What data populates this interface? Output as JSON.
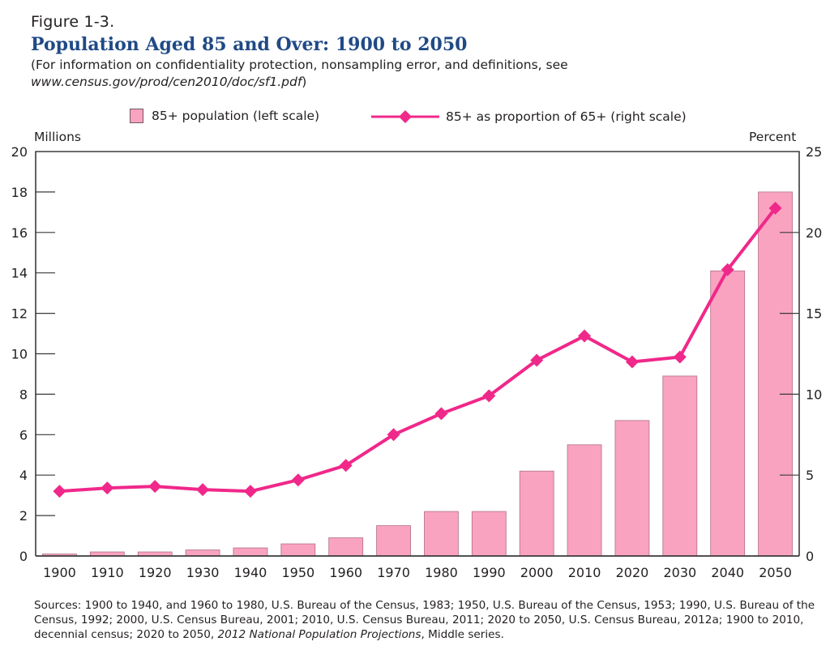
{
  "header": {
    "figure_label": "Figure 1-3.",
    "title": "Population Aged 85 and Over: 1900 to 2050",
    "subtitle_line1": "(For information on confidentiality protection, nonsampling error, and definitions, see",
    "subtitle_url": "www.census.gov/prod/cen2010/doc/sf1.pdf",
    "subtitle_close": ")"
  },
  "colors": {
    "title": "#1f4a86",
    "bar_fill": "#f9a3c0",
    "bar_stroke": "#b07088",
    "line": "#f0288a",
    "axis": "#3a3a3a"
  },
  "legend": {
    "bars_label": "85+ population (left scale)",
    "line_label": "85+ as proportion of 65+ (right scale)"
  },
  "sources": {
    "text_before_italic": "Sources: 1900 to 1940, and 1960 to 1980,  U.S. Bureau of the Census, 1983; 1950, U.S. Bureau of the Census, 1953; 1990, U.S. Bureau of the Census, 1992; 2000, U.S. Census Bureau, 2001; 2010, U.S. Census Bureau, 2011; 2020 to 2050, U.S. Census Bureau, 2012a; 1900 to 2010, decennial census; 2020 to 2050, ",
    "italic": "2012 National Population Projections",
    "text_after_italic": ", Middle series."
  },
  "chart_data": {
    "type": "bar+line",
    "title": "Population Aged 85 and Over: 1900 to 2050",
    "categories": [
      "1900",
      "1910",
      "1920",
      "1930",
      "1940",
      "1950",
      "1960",
      "1970",
      "1980",
      "1990",
      "2000",
      "2010",
      "2020",
      "2030",
      "2040",
      "2050"
    ],
    "series": [
      {
        "name": "85+ population (left scale)",
        "type": "bar",
        "axis": "left",
        "values": [
          0.1,
          0.2,
          0.2,
          0.3,
          0.4,
          0.6,
          0.9,
          1.5,
          2.2,
          2.2,
          4.2,
          5.5,
          6.7,
          8.9,
          14.1,
          18.0
        ]
      },
      {
        "name": "85+ as proportion of 65+ (right scale)",
        "type": "line",
        "marker": "diamond",
        "axis": "right",
        "values": [
          4.0,
          4.2,
          4.3,
          4.1,
          4.0,
          4.7,
          5.6,
          7.5,
          8.8,
          9.9,
          12.1,
          13.6,
          12.0,
          12.3,
          17.7,
          21.5
        ]
      }
    ],
    "left_axis": {
      "label": "Millions",
      "ylim": [
        0,
        20
      ],
      "ticks": [
        0,
        2,
        4,
        6,
        8,
        10,
        12,
        14,
        16,
        18,
        20
      ]
    },
    "right_axis": {
      "label": "Percent",
      "ylim": [
        0,
        25
      ],
      "ticks": [
        0,
        5,
        10,
        15,
        20,
        25
      ]
    },
    "xlabel": "",
    "grid": false,
    "legend_position": "top"
  }
}
